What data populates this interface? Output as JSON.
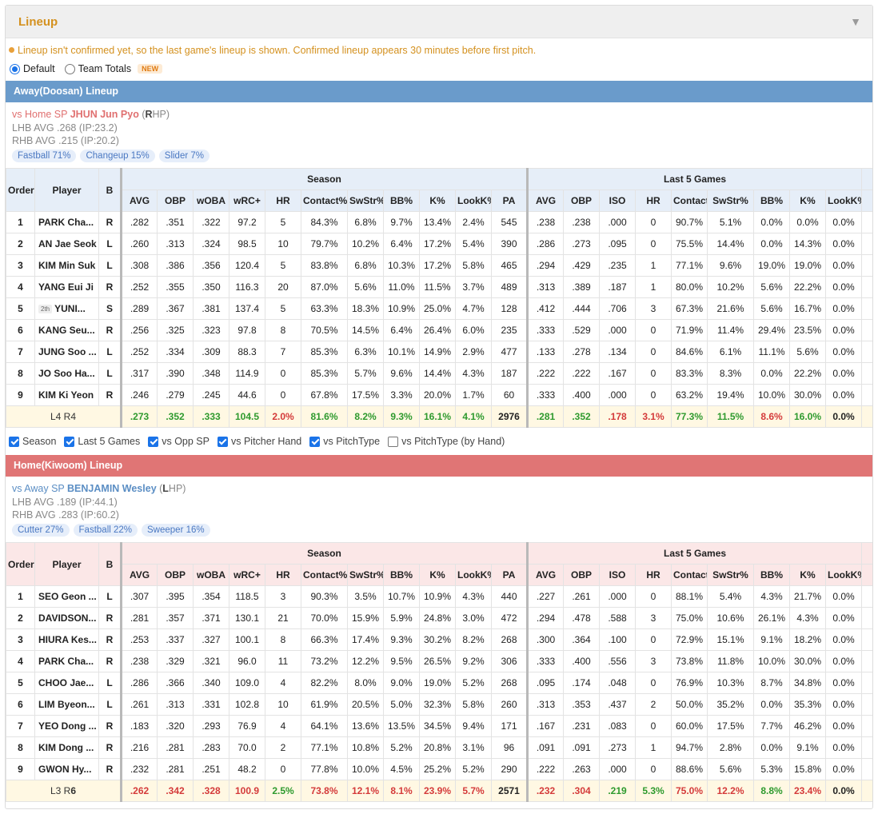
{
  "header": {
    "title": "Lineup",
    "collapse_icon": "triangle-down-icon"
  },
  "notice": "Lineup isn't confirmed yet, so the last game's lineup is shown. Confirmed lineup appears 30 minutes before first pitch.",
  "modes": {
    "default_label": "Default",
    "team_totals_label": "Team Totals",
    "new_badge": "NEW",
    "selected": "Default"
  },
  "columns": {
    "order": "Order",
    "player": "Player",
    "b": "B",
    "season_group": "Season",
    "last5_group": "Last 5 Games",
    "season": [
      "AVG",
      "OBP",
      "wOBA",
      "wRC+",
      "HR",
      "Contact%",
      "SwStr%",
      "BB%",
      "K%",
      "LookK%",
      "PA"
    ],
    "last5": [
      "AVG",
      "OBP",
      "ISO",
      "HR",
      "Contact%",
      "SwStr%",
      "BB%",
      "K%",
      "LookK%"
    ]
  },
  "away": {
    "bar_title": "Away(Doosan) Lineup",
    "sp_prefix": "vs Home SP ",
    "sp_name": "JHUN Jun Pyo",
    "sp_hand_open": " (",
    "sp_hand_letter": "R",
    "sp_hand_rest": "HP)",
    "lhb": "LHB AVG .268 (IP:23.2)",
    "rhb": "RHB AVG .215 (IP:20.2)",
    "pitches": [
      "Fastball 71%",
      "Changeup 15%",
      "Slider 7%"
    ],
    "rows": [
      {
        "order": "1",
        "badge": "",
        "player": "PARK Cha...",
        "b": "R",
        "season": [
          ".282",
          ".351",
          ".322",
          "97.2",
          "5",
          "84.3%",
          "6.8%",
          "9.7%",
          "13.4%",
          "2.4%",
          "545"
        ],
        "last5": [
          ".238",
          ".238",
          ".000",
          "0",
          "90.7%",
          "5.1%",
          "0.0%",
          "0.0%",
          "0.0%"
        ]
      },
      {
        "order": "2",
        "badge": "",
        "player": "AN Jae Seok",
        "b": "L",
        "season": [
          ".260",
          ".313",
          ".324",
          "98.5",
          "10",
          "79.7%",
          "10.2%",
          "6.4%",
          "17.2%",
          "5.4%",
          "390"
        ],
        "last5": [
          ".286",
          ".273",
          ".095",
          "0",
          "75.5%",
          "14.4%",
          "0.0%",
          "14.3%",
          "0.0%"
        ]
      },
      {
        "order": "3",
        "badge": "",
        "player": "KIM Min Suk",
        "b": "L",
        "season": [
          ".308",
          ".386",
          ".356",
          "120.4",
          "5",
          "83.8%",
          "6.8%",
          "10.3%",
          "17.2%",
          "5.8%",
          "465"
        ],
        "last5": [
          ".294",
          ".429",
          ".235",
          "1",
          "77.1%",
          "9.6%",
          "19.0%",
          "19.0%",
          "0.0%"
        ]
      },
      {
        "order": "4",
        "badge": "",
        "player": "YANG Eui Ji",
        "b": "R",
        "season": [
          ".252",
          ".355",
          ".350",
          "116.3",
          "20",
          "87.0%",
          "5.6%",
          "11.0%",
          "11.5%",
          "3.7%",
          "489"
        ],
        "last5": [
          ".313",
          ".389",
          ".187",
          "1",
          "80.0%",
          "10.2%",
          "5.6%",
          "22.2%",
          "0.0%"
        ]
      },
      {
        "order": "5",
        "badge": "2th",
        "player": "YUNI...",
        "b": "S",
        "season": [
          ".289",
          ".367",
          ".381",
          "137.4",
          "5",
          "63.3%",
          "18.3%",
          "10.9%",
          "25.0%",
          "4.7%",
          "128"
        ],
        "last5": [
          ".412",
          ".444",
          ".706",
          "3",
          "67.3%",
          "21.6%",
          "5.6%",
          "16.7%",
          "0.0%"
        ]
      },
      {
        "order": "6",
        "badge": "",
        "player": "KANG Seu...",
        "b": "R",
        "season": [
          ".256",
          ".325",
          ".323",
          "97.8",
          "8",
          "70.5%",
          "14.5%",
          "6.4%",
          "26.4%",
          "6.0%",
          "235"
        ],
        "last5": [
          ".333",
          ".529",
          ".000",
          "0",
          "71.9%",
          "11.4%",
          "29.4%",
          "23.5%",
          "0.0%"
        ]
      },
      {
        "order": "7",
        "badge": "",
        "player": "JUNG Soo ...",
        "b": "L",
        "season": [
          ".252",
          ".334",
          ".309",
          "88.3",
          "7",
          "85.3%",
          "6.3%",
          "10.1%",
          "14.9%",
          "2.9%",
          "477"
        ],
        "last5": [
          ".133",
          ".278",
          ".134",
          "0",
          "84.6%",
          "6.1%",
          "11.1%",
          "5.6%",
          "0.0%"
        ]
      },
      {
        "order": "8",
        "badge": "",
        "player": "JO Soo Ha...",
        "b": "L",
        "season": [
          ".317",
          ".390",
          ".348",
          "114.9",
          "0",
          "85.3%",
          "5.7%",
          "9.6%",
          "14.4%",
          "4.3%",
          "187"
        ],
        "last5": [
          ".222",
          ".222",
          ".167",
          "0",
          "83.3%",
          "8.3%",
          "0.0%",
          "22.2%",
          "0.0%"
        ]
      },
      {
        "order": "9",
        "badge": "",
        "player": "KIM Ki Yeon",
        "b": "R",
        "season": [
          ".246",
          ".279",
          ".245",
          "44.6",
          "0",
          "67.8%",
          "17.5%",
          "3.3%",
          "20.0%",
          "1.7%",
          "60"
        ],
        "last5": [
          ".333",
          ".400",
          ".000",
          "0",
          "63.2%",
          "19.4%",
          "10.0%",
          "30.0%",
          "0.0%"
        ]
      }
    ],
    "totals": {
      "label": "L4 R4",
      "season": [
        ".273",
        ".352",
        ".333",
        "104.5",
        "2.0%",
        "81.6%",
        "8.2%",
        "9.3%",
        "16.1%",
        "4.1%",
        "2976"
      ],
      "season_colors": [
        "green",
        "green",
        "green",
        "green",
        "red",
        "green",
        "green",
        "green",
        "green",
        "green",
        ""
      ],
      "last5": [
        ".281",
        ".352",
        ".178",
        "3.1%",
        "77.3%",
        "11.5%",
        "8.6%",
        "16.0%",
        "0.0%"
      ],
      "last5_colors": [
        "green",
        "green",
        "red",
        "red",
        "green",
        "green",
        "red",
        "green",
        ""
      ]
    }
  },
  "filters": [
    {
      "label": "Season",
      "checked": true
    },
    {
      "label": "Last 5 Games",
      "checked": true
    },
    {
      "label": "vs Opp SP",
      "checked": true
    },
    {
      "label": "vs Pitcher Hand",
      "checked": true
    },
    {
      "label": "vs PitchType",
      "checked": true
    },
    {
      "label": "vs PitchType (by Hand)",
      "checked": false
    }
  ],
  "home": {
    "bar_title": "Home(Kiwoom) Lineup",
    "sp_prefix": "vs Away SP ",
    "sp_name": "BENJAMIN Wesley",
    "sp_hand_open": " (",
    "sp_hand_letter": "L",
    "sp_hand_rest": "HP)",
    "lhb": "LHB AVG .189 (IP:44.1)",
    "rhb": "RHB AVG .283 (IP:60.2)",
    "pitches": [
      "Cutter 27%",
      "Fastball 22%",
      "Sweeper 16%"
    ],
    "rows": [
      {
        "order": "1",
        "badge": "",
        "player": "SEO Geon ...",
        "b": "L",
        "season": [
          ".307",
          ".395",
          ".354",
          "118.5",
          "3",
          "90.3%",
          "3.5%",
          "10.7%",
          "10.9%",
          "4.3%",
          "440"
        ],
        "last5": [
          ".227",
          ".261",
          ".000",
          "0",
          "88.1%",
          "5.4%",
          "4.3%",
          "21.7%",
          "0.0%"
        ]
      },
      {
        "order": "2",
        "badge": "",
        "player": "DAVIDSON...",
        "b": "R",
        "season": [
          ".281",
          ".357",
          ".371",
          "130.1",
          "21",
          "70.0%",
          "15.9%",
          "5.9%",
          "24.8%",
          "3.0%",
          "472"
        ],
        "last5": [
          ".294",
          ".478",
          ".588",
          "3",
          "75.0%",
          "10.6%",
          "26.1%",
          "4.3%",
          "0.0%"
        ]
      },
      {
        "order": "3",
        "badge": "",
        "player": "HIURA Kes...",
        "b": "R",
        "season": [
          ".253",
          ".337",
          ".327",
          "100.1",
          "8",
          "66.3%",
          "17.4%",
          "9.3%",
          "30.2%",
          "8.2%",
          "268"
        ],
        "last5": [
          ".300",
          ".364",
          ".100",
          "0",
          "72.9%",
          "15.1%",
          "9.1%",
          "18.2%",
          "0.0%"
        ]
      },
      {
        "order": "4",
        "badge": "",
        "player": "PARK Cha...",
        "b": "R",
        "season": [
          ".238",
          ".329",
          ".321",
          "96.0",
          "11",
          "73.2%",
          "12.2%",
          "9.5%",
          "26.5%",
          "9.2%",
          "306"
        ],
        "last5": [
          ".333",
          ".400",
          ".556",
          "3",
          "73.8%",
          "11.8%",
          "10.0%",
          "30.0%",
          "0.0%"
        ]
      },
      {
        "order": "5",
        "badge": "",
        "player": "CHOO Jae...",
        "b": "L",
        "season": [
          ".286",
          ".366",
          ".340",
          "109.0",
          "4",
          "82.2%",
          "8.0%",
          "9.0%",
          "19.0%",
          "5.2%",
          "268"
        ],
        "last5": [
          ".095",
          ".174",
          ".048",
          "0",
          "76.9%",
          "10.3%",
          "8.7%",
          "34.8%",
          "0.0%"
        ]
      },
      {
        "order": "6",
        "badge": "",
        "player": "LIM Byeon...",
        "b": "L",
        "season": [
          ".261",
          ".313",
          ".331",
          "102.8",
          "10",
          "61.9%",
          "20.5%",
          "5.0%",
          "32.3%",
          "5.8%",
          "260"
        ],
        "last5": [
          ".313",
          ".353",
          ".437",
          "2",
          "50.0%",
          "35.2%",
          "0.0%",
          "35.3%",
          "0.0%"
        ]
      },
      {
        "order": "7",
        "badge": "",
        "player": "YEO Dong ...",
        "b": "R",
        "season": [
          ".183",
          ".320",
          ".293",
          "76.9",
          "4",
          "64.1%",
          "13.6%",
          "13.5%",
          "34.5%",
          "9.4%",
          "171"
        ],
        "last5": [
          ".167",
          ".231",
          ".083",
          "0",
          "60.0%",
          "17.5%",
          "7.7%",
          "46.2%",
          "0.0%"
        ]
      },
      {
        "order": "8",
        "badge": "",
        "player": "KIM Dong ...",
        "b": "R",
        "season": [
          ".216",
          ".281",
          ".283",
          "70.0",
          "2",
          "77.1%",
          "10.8%",
          "5.2%",
          "20.8%",
          "3.1%",
          "96"
        ],
        "last5": [
          ".091",
          ".091",
          ".273",
          "1",
          "94.7%",
          "2.8%",
          "0.0%",
          "9.1%",
          "0.0%"
        ]
      },
      {
        "order": "9",
        "badge": "",
        "player": "GWON Hy...",
        "b": "R",
        "season": [
          ".232",
          ".281",
          ".251",
          "48.2",
          "0",
          "77.8%",
          "10.0%",
          "4.5%",
          "25.2%",
          "5.2%",
          "290"
        ],
        "last5": [
          ".222",
          ".263",
          ".000",
          "0",
          "88.6%",
          "5.6%",
          "5.3%",
          "15.8%",
          "0.0%"
        ]
      }
    ],
    "totals": {
      "label_l": "L3 R",
      "label_r": "6",
      "season": [
        ".262",
        ".342",
        ".328",
        "100.9",
        "2.5%",
        "73.8%",
        "12.1%",
        "8.1%",
        "23.9%",
        "5.7%",
        "2571"
      ],
      "season_colors": [
        "red",
        "red",
        "red",
        "red",
        "green",
        "red",
        "red",
        "red",
        "red",
        "red",
        ""
      ],
      "last5": [
        ".232",
        ".304",
        ".219",
        "5.3%",
        "75.0%",
        "12.2%",
        "8.8%",
        "23.4%",
        "0.0%"
      ],
      "last5_colors": [
        "red",
        "red",
        "green",
        "green",
        "red",
        "red",
        "green",
        "red",
        ""
      ]
    }
  }
}
